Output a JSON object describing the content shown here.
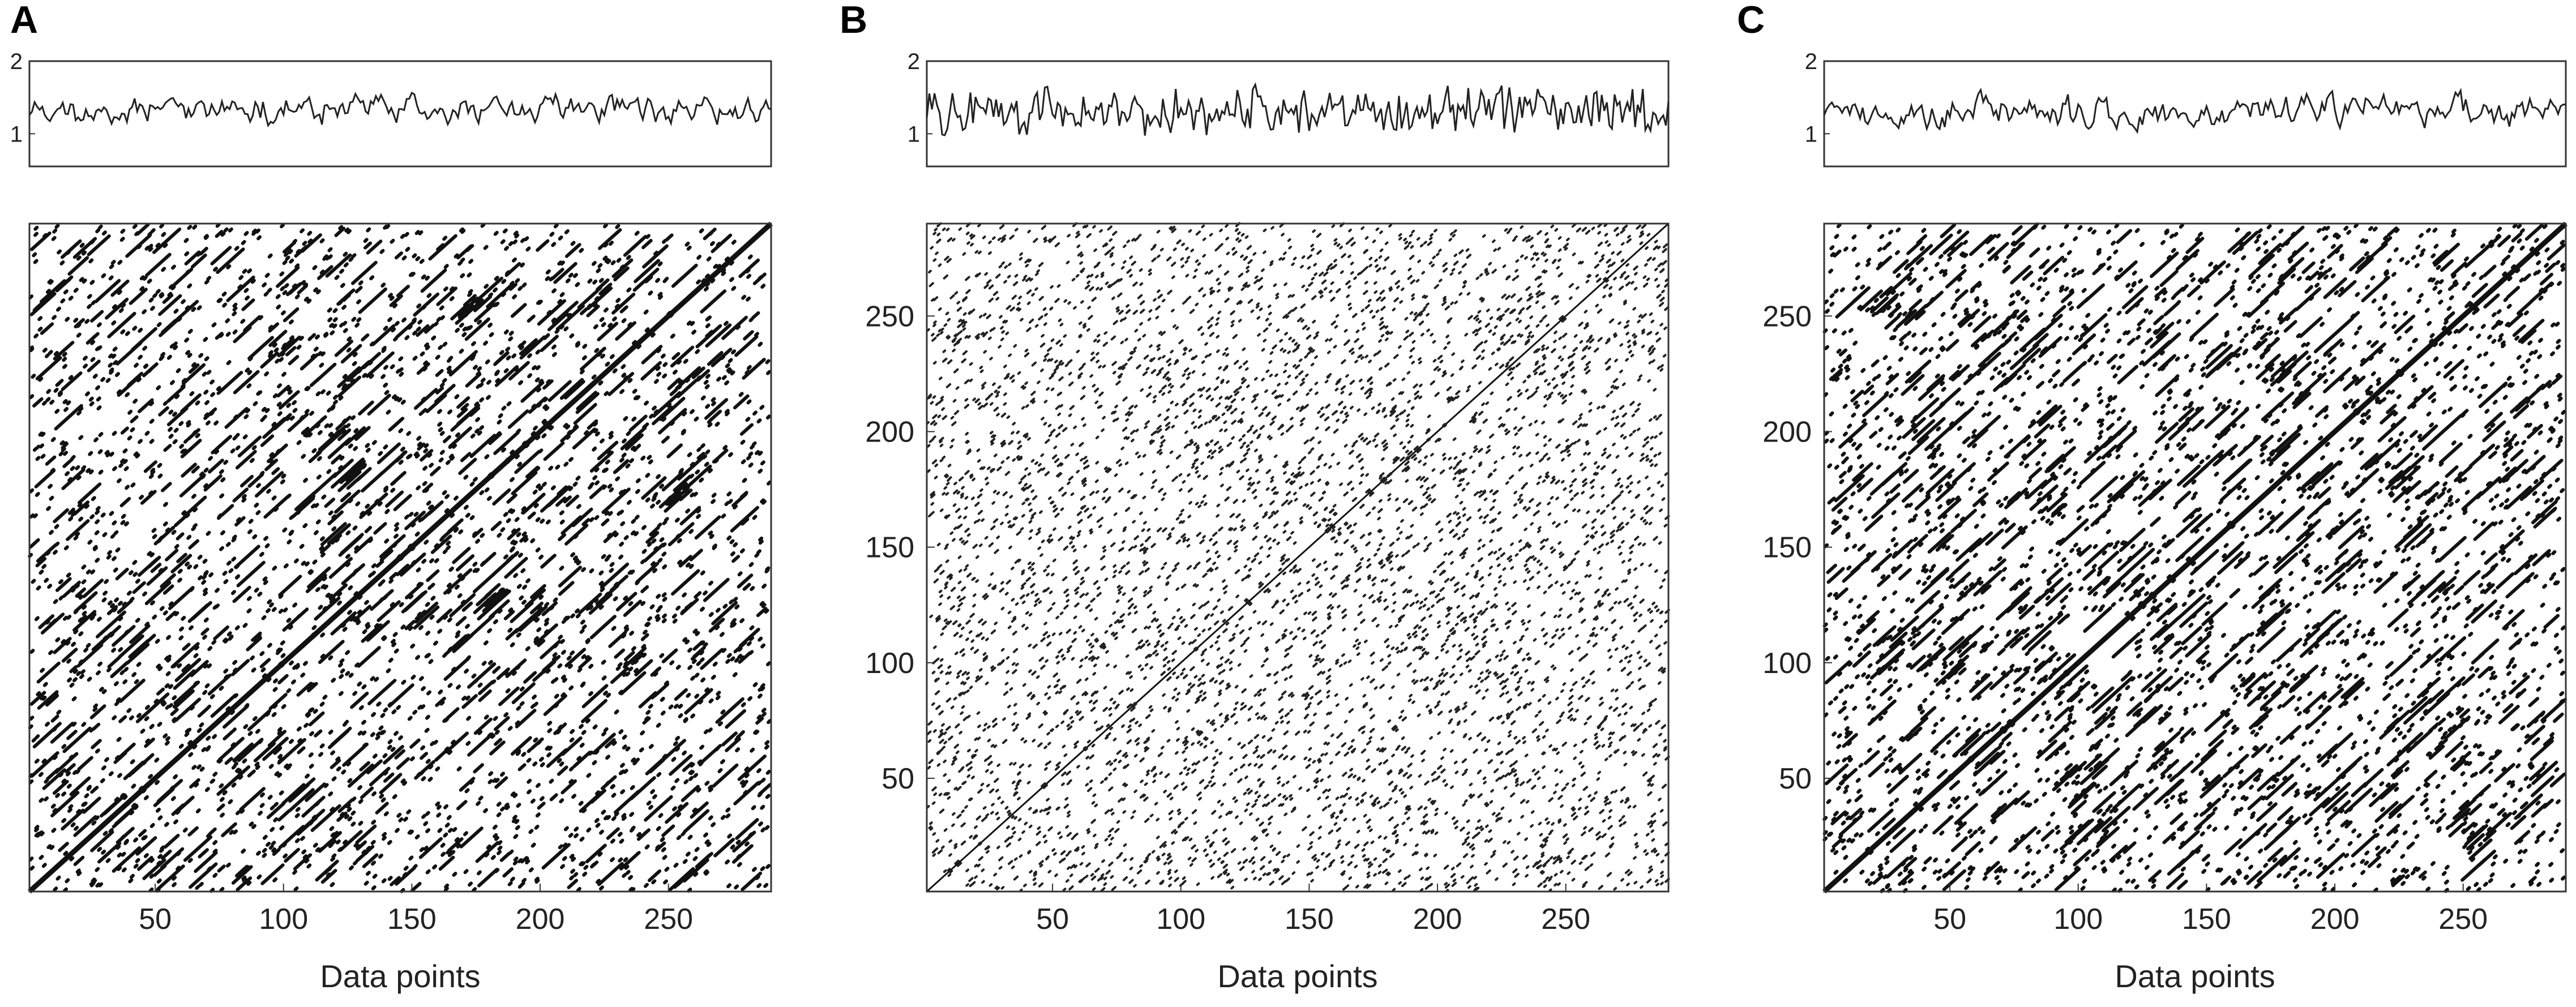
{
  "chart_data": [
    {
      "panel": "A",
      "type": "recurrence-plot-with-timeseries",
      "timeseries": {
        "ylim": [
          0.55,
          2.0
        ],
        "yticks": [
          1,
          2
        ],
        "seed": 11,
        "smooth": 0.55
      },
      "recurrence": {
        "xlabel": "Data points",
        "xlim": [
          1,
          290
        ],
        "ylim": [
          1,
          290
        ],
        "xticks": [
          50,
          100,
          150,
          200,
          250
        ],
        "yticks": [],
        "diagonal": "line-of-identity",
        "density": "dense, thick diagonal segments",
        "seed": 101
      }
    },
    {
      "panel": "B",
      "type": "recurrence-plot-with-timeseries",
      "timeseries": {
        "ylim": [
          0.55,
          2.0
        ],
        "yticks": [
          1,
          2
        ],
        "seed": 22,
        "smooth": 0.1
      },
      "recurrence": {
        "xlabel": "Data points",
        "xlim": [
          1,
          290
        ],
        "ylim": [
          1,
          290
        ],
        "xticks": [
          50,
          100,
          150,
          200,
          250
        ],
        "yticks": [
          50,
          100,
          150,
          200,
          250
        ],
        "diagonal": "line-of-identity",
        "density": "sparse scattered points",
        "seed": 202
      }
    },
    {
      "panel": "C",
      "type": "recurrence-plot-with-timeseries",
      "timeseries": {
        "ylim": [
          0.55,
          2.0
        ],
        "yticks": [
          1,
          2
        ],
        "seed": 33,
        "smooth": 0.5
      },
      "recurrence": {
        "xlabel": "Data points",
        "xlim": [
          1,
          290
        ],
        "ylim": [
          1,
          290
        ],
        "xticks": [
          50,
          100,
          150,
          200,
          250
        ],
        "yticks": [
          50,
          100,
          150,
          200,
          250
        ],
        "diagonal": "line-of-identity",
        "density": "dense, thick diagonal segments",
        "seed": 303
      }
    }
  ]
}
